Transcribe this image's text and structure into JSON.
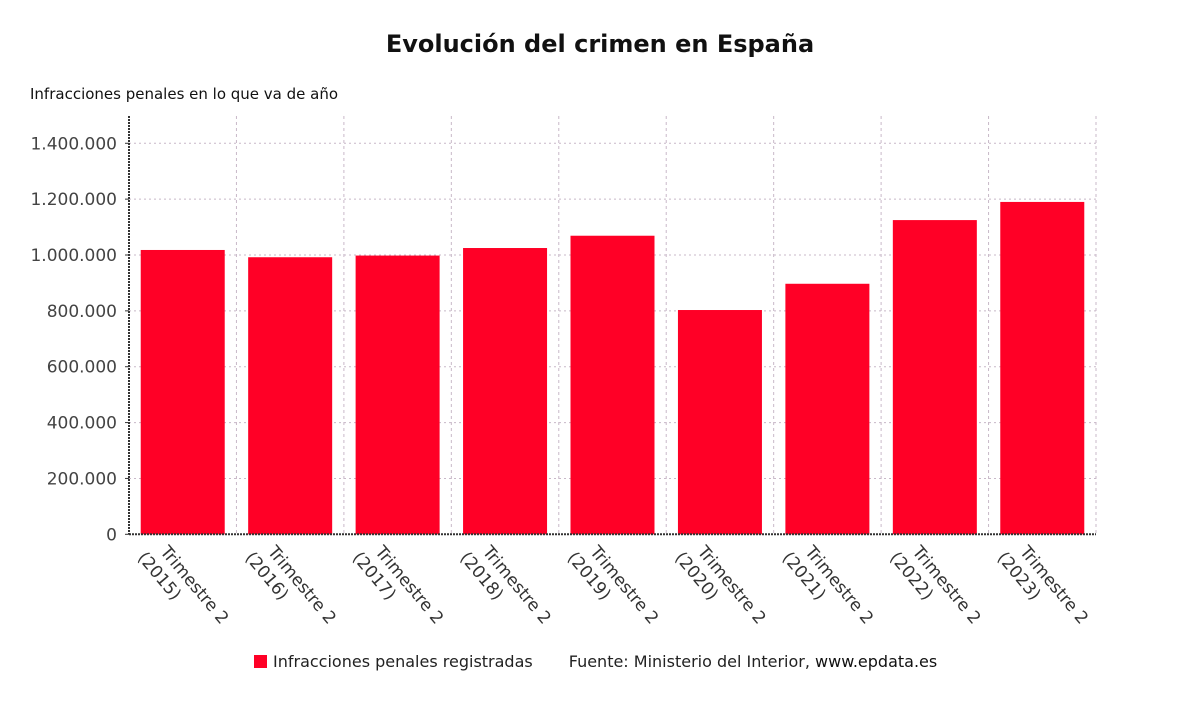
{
  "chart_data": {
    "type": "bar",
    "title": "Evolución del crimen en España",
    "subtitle": "Infracciones penales en lo que va de año",
    "categories": [
      "Trimestre 2 (2015)",
      "Trimestre 2 (2016)",
      "Trimestre 2 (2017)",
      "Trimestre 2 (2018)",
      "Trimestre 2 (2019)",
      "Trimestre 2 (2020)",
      "Trimestre 2 (2021)",
      "Trimestre 2 (2022)",
      "Trimestre 2 (2023)"
    ],
    "category_lines": [
      [
        "Trimestre 2",
        "(2015)"
      ],
      [
        "Trimestre 2",
        "(2016)"
      ],
      [
        "Trimestre 2",
        "(2017)"
      ],
      [
        "Trimestre 2",
        "(2018)"
      ],
      [
        "Trimestre 2",
        "(2019)"
      ],
      [
        "Trimestre 2",
        "(2020)"
      ],
      [
        "Trimestre 2",
        "(2021)"
      ],
      [
        "Trimestre 2",
        "(2022)"
      ],
      [
        "Trimestre 2",
        "(2023)"
      ]
    ],
    "series": [
      {
        "name": "Infracciones penales registradas",
        "color": "#ff0026",
        "values": [
          1018000,
          992000,
          998000,
          1025000,
          1069000,
          803000,
          897000,
          1125000,
          1190000
        ]
      }
    ],
    "yticks": [
      0,
      200000,
      400000,
      600000,
      800000,
      1000000,
      1200000,
      1400000
    ],
    "ytick_labels": [
      "0",
      "200.000",
      "400.000",
      "600.000",
      "800.000",
      "1.000.000",
      "1.200.000",
      "1.400.000"
    ],
    "ylim": [
      0,
      1500000
    ],
    "grid": true,
    "legend_position": "bottom"
  },
  "footer": {
    "legend_label": "Infracciones penales registradas",
    "source": "Fuente: Ministerio del Interior,",
    "site": "www.epdata.es"
  }
}
